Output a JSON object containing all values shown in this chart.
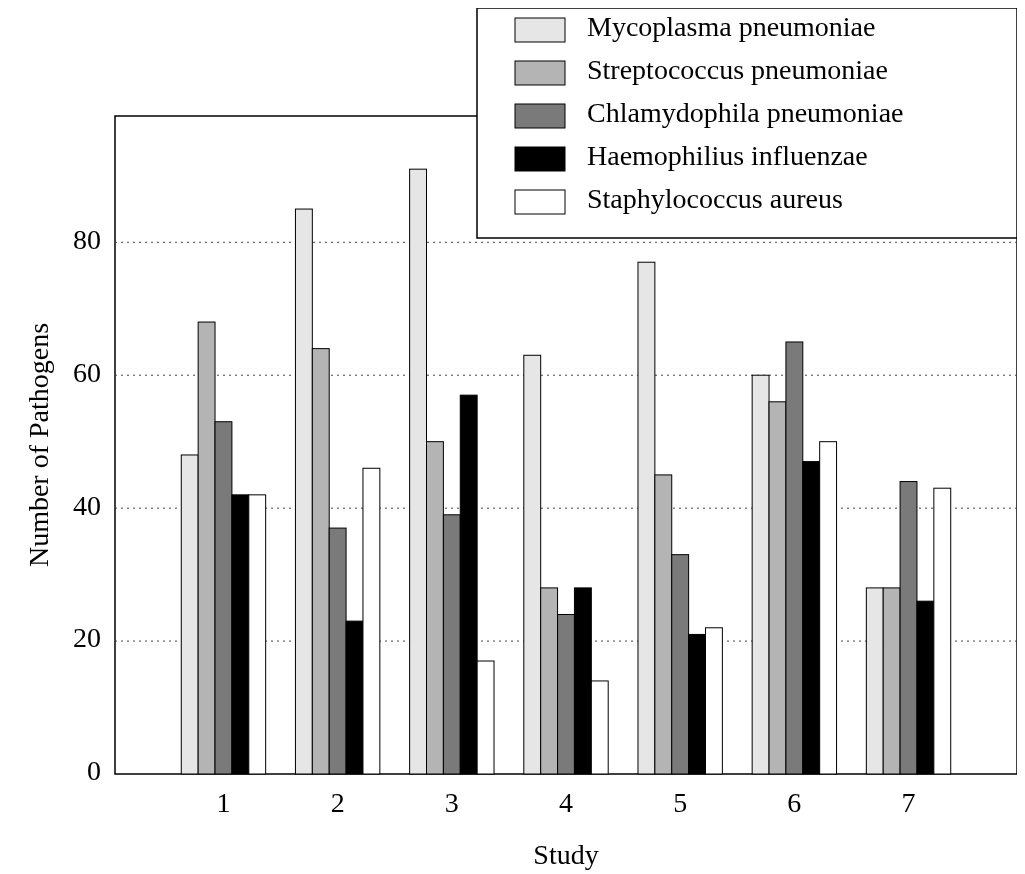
{
  "chart_data": {
    "type": "bar",
    "xlabel": "Study",
    "ylabel": "Number of Pathogens",
    "categories": [
      "1",
      "2",
      "3",
      "4",
      "5",
      "6",
      "7"
    ],
    "series": [
      {
        "name": "Mycoplasma pneumoniae",
        "color": "#e6e6e6",
        "values": [
          48,
          85,
          91,
          63,
          77,
          60,
          28
        ]
      },
      {
        "name": "Streptococcus pneumoniae",
        "color": "#b4b4b4",
        "values": [
          68,
          64,
          50,
          28,
          45,
          56,
          28
        ]
      },
      {
        "name": "Chlamydophila pneumoniae",
        "color": "#7a7a7a",
        "values": [
          53,
          37,
          39,
          24,
          33,
          65,
          44
        ]
      },
      {
        "name": "Haemophilius influenzae",
        "color": "#000000",
        "values": [
          42,
          23,
          57,
          28,
          21,
          47,
          26
        ]
      },
      {
        "name": "Staphylococcus aureus",
        "color": "#ffffff",
        "values": [
          42,
          46,
          17,
          14,
          22,
          50,
          43
        ]
      }
    ],
    "ylim": [
      0,
      99
    ],
    "yticks": [
      0,
      20,
      40,
      60,
      80
    ],
    "grid": "y",
    "legend": "top right"
  }
}
